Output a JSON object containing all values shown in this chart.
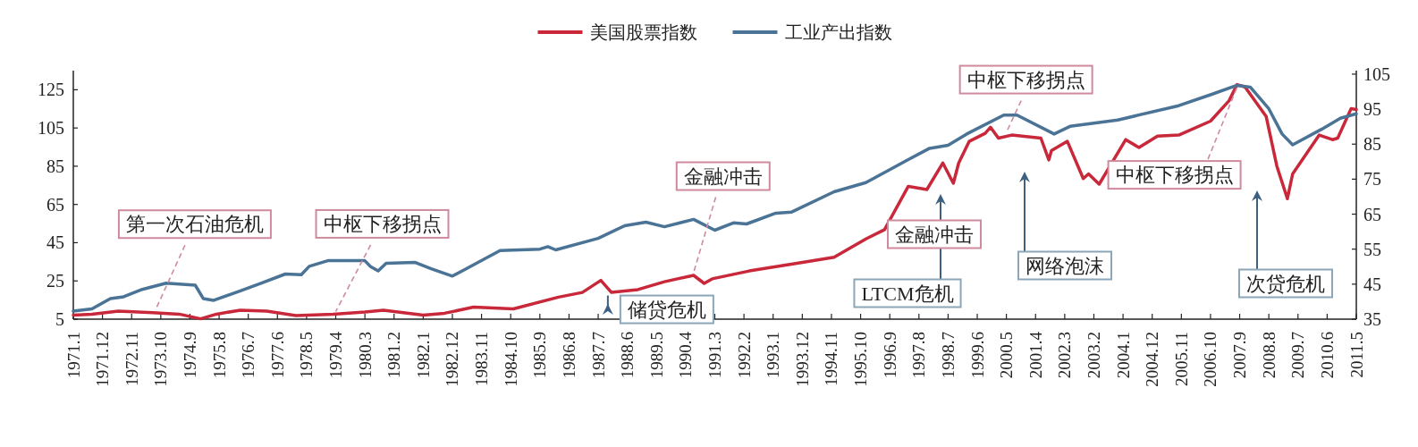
{
  "chart_data": {
    "type": "line",
    "xlim": [
      "1971-01",
      "2011-05"
    ],
    "xticks": [
      {
        "value": "1971-01",
        "label": "1971.1"
      },
      {
        "value": "1971-12",
        "label": "1971.12"
      },
      {
        "value": "1972-11",
        "label": "1972.11"
      },
      {
        "value": "1973-10",
        "label": "1973.10"
      },
      {
        "value": "1974-09",
        "label": "1974.9"
      },
      {
        "value": "1975-08",
        "label": "1975.8"
      },
      {
        "value": "1976-07",
        "label": "1976.7"
      },
      {
        "value": "1977-06",
        "label": "1977.6"
      },
      {
        "value": "1978-05",
        "label": "1978.5"
      },
      {
        "value": "1979-04",
        "label": "1979.4"
      },
      {
        "value": "1980-03",
        "label": "1980.3"
      },
      {
        "value": "1981-02",
        "label": "1981.2"
      },
      {
        "value": "1982-01",
        "label": "1982.1"
      },
      {
        "value": "1982-12",
        "label": "1982.12"
      },
      {
        "value": "1983-11",
        "label": "1983.11"
      },
      {
        "value": "1984-10",
        "label": "1984.10"
      },
      {
        "value": "1985-09",
        "label": "1985.9"
      },
      {
        "value": "1986-08",
        "label": "1986.8"
      },
      {
        "value": "1987-07",
        "label": "1987.7"
      },
      {
        "value": "1988-06",
        "label": "1988.6"
      },
      {
        "value": "1989-05",
        "label": "1989.5"
      },
      {
        "value": "1990-04",
        "label": "1990.4"
      },
      {
        "value": "1991-03",
        "label": "1991.3"
      },
      {
        "value": "1992-02",
        "label": "1992.2"
      },
      {
        "value": "1993-01",
        "label": "1993.1"
      },
      {
        "value": "1993-12",
        "label": "1993.12"
      },
      {
        "value": "1994-11",
        "label": "1994.11"
      },
      {
        "value": "1995-10",
        "label": "1995.10"
      },
      {
        "value": "1996-09",
        "label": "1996.9"
      },
      {
        "value": "1997-08",
        "label": "1997.8"
      },
      {
        "value": "1998-07",
        "label": "1998.7"
      },
      {
        "value": "1999-06",
        "label": "1999.6"
      },
      {
        "value": "2000-05",
        "label": "2000.5"
      },
      {
        "value": "2001-04",
        "label": "2001.4"
      },
      {
        "value": "2002-03",
        "label": "2002.3"
      },
      {
        "value": "2003-02",
        "label": "2003.2"
      },
      {
        "value": "2004-01",
        "label": "2004.1"
      },
      {
        "value": "2004-12",
        "label": "2004.12"
      },
      {
        "value": "2005-11",
        "label": "2005.11"
      },
      {
        "value": "2006-10",
        "label": "2006.10"
      },
      {
        "value": "2007-09",
        "label": "2007.9"
      },
      {
        "value": "2008-08",
        "label": "2008.8"
      },
      {
        "value": "2009-07",
        "label": "2009.7"
      },
      {
        "value": "2010-06",
        "label": "2010.6"
      },
      {
        "value": "2011-05",
        "label": "2011.5"
      }
    ],
    "ylim": [
      5,
      135
    ],
    "yticks": [
      5,
      25,
      45,
      65,
      85,
      105,
      125
    ],
    "y2lim": [
      35,
      106
    ],
    "y2ticks": [
      35,
      45,
      55,
      65,
      75,
      85,
      95,
      105
    ],
    "legend": "top",
    "line_style": "solid",
    "series": [
      {
        "name": "美国股票指数",
        "color": "#c8283a",
        "x": [
          "1971-01",
          "1971-08",
          "1972-06",
          "1973-07",
          "1974-05",
          "1975-01",
          "1975-07",
          "1976-04",
          "1977-02",
          "1978-01",
          "1979-03",
          "1980-03",
          "1980-10",
          "1982-01",
          "1982-09",
          "1983-08",
          "1984-11",
          "1986-04",
          "1987-01",
          "1987-08",
          "1987-12",
          "1988-10",
          "1989-08",
          "1990-07",
          "1990-11",
          "1991-02",
          "1992-04",
          "1993-10",
          "1994-12",
          "1995-12",
          "1996-07",
          "1997-04",
          "1997-11",
          "1998-05",
          "1998-09",
          "1998-11",
          "1999-03",
          "1999-09",
          "1999-11",
          "2000-02",
          "2000-07",
          "2001-06",
          "2001-09",
          "2001-10",
          "2002-04",
          "2002-10",
          "2002-12",
          "2003-04",
          "2004-02",
          "2004-07",
          "2005-02",
          "2005-10",
          "2006-10",
          "2007-05",
          "2007-08",
          "2007-11",
          "2008-07",
          "2008-11",
          "2009-03",
          "2009-05",
          "2010-03",
          "2010-08",
          "2010-10",
          "2011-03",
          "2011-05"
        ],
        "values": [
          7.1,
          7.6,
          9.2,
          8.4,
          7.6,
          5.2,
          7.6,
          9.7,
          9.2,
          6.9,
          7.6,
          8.7,
          9.7,
          7.1,
          8.1,
          11.3,
          10.4,
          16.5,
          19,
          25.3,
          19,
          20.5,
          24.6,
          27.9,
          23.7,
          26.1,
          30.2,
          34.2,
          37.4,
          47,
          51.8,
          74.5,
          72.8,
          86.7,
          76.1,
          86.7,
          98,
          102.2,
          105.4,
          99.7,
          101.3,
          99.7,
          88.3,
          93.2,
          98,
          78.5,
          81,
          75.6,
          98.9,
          94.8,
          100.7,
          101.3,
          108.6,
          119.3,
          127.7,
          126.5,
          111,
          85.1,
          68,
          81,
          101.3,
          98.9,
          99.7,
          115.1,
          114.7
        ]
      },
      {
        "name": "工业产出指数",
        "color": "#4a7396",
        "axis": "y2",
        "x": [
          "1971-01",
          "1971-08",
          "1972-03",
          "1972-08",
          "1973-03",
          "1973-12",
          "1974-11",
          "1975-02",
          "1975-06",
          "1976-04",
          "1976-12",
          "1977-09",
          "1978-03",
          "1978-06",
          "1979-01",
          "1980-03",
          "1980-05",
          "1980-08",
          "1980-11",
          "1981-10",
          "1982-04",
          "1982-12",
          "1983-05",
          "1984-06",
          "1985-09",
          "1985-12",
          "1986-03",
          "1987-07",
          "1988-05",
          "1989-01",
          "1989-08",
          "1990-07",
          "1991-03",
          "1991-10",
          "1992-03",
          "1993-02",
          "1993-08",
          "1994-12",
          "1995-12",
          "1997-04",
          "1997-12",
          "1998-07",
          "1999-02",
          "2000-04",
          "2000-09",
          "2001-11",
          "2002-05",
          "2003-11",
          "2005-10",
          "2006-10",
          "2007-08",
          "2008-01",
          "2008-08",
          "2009-01",
          "2009-05",
          "2010-04",
          "2010-11",
          "2011-05"
        ],
        "values": [
          37.3,
          37.9,
          40.9,
          41.4,
          43.5,
          45.3,
          44.7,
          40.9,
          40.4,
          43.1,
          45.3,
          47.9,
          47.7,
          50.1,
          51.7,
          51.7,
          50.1,
          48.8,
          51,
          51.2,
          49.4,
          47.3,
          49.3,
          54.6,
          55,
          55.7,
          54.8,
          58.1,
          61.7,
          62.7,
          61.4,
          63.5,
          60.4,
          62.5,
          62.2,
          65.3,
          65.6,
          71.4,
          74,
          80.6,
          83.8,
          84.7,
          87.9,
          93.3,
          93.3,
          87.9,
          90.1,
          91.9,
          96,
          99.1,
          101.8,
          101.3,
          95.1,
          87.9,
          84.8,
          89.3,
          92.4,
          93.7
        ]
      }
    ],
    "annotations": [
      {
        "text": "第一次石油危机",
        "x": "1973-08",
        "y": 8.4
      },
      {
        "text": "中枢下移拐点",
        "x": "1979-04",
        "y": 7.6
      },
      {
        "text": "储贷危机",
        "x": "1987-12",
        "y": 19
      },
      {
        "text": "金融冲击",
        "x": "1990-07",
        "y": 27.9
      },
      "金融冲击",
      "LTCM危机",
      {
        "text": "中枢下移拐点",
        "x": "2000-05",
        "y": 101.3
      },
      "网络泡沫",
      {
        "text": "中枢下移拐点",
        "x": "2007-08",
        "y": 127.7
      },
      "次贷危机"
    ]
  }
}
